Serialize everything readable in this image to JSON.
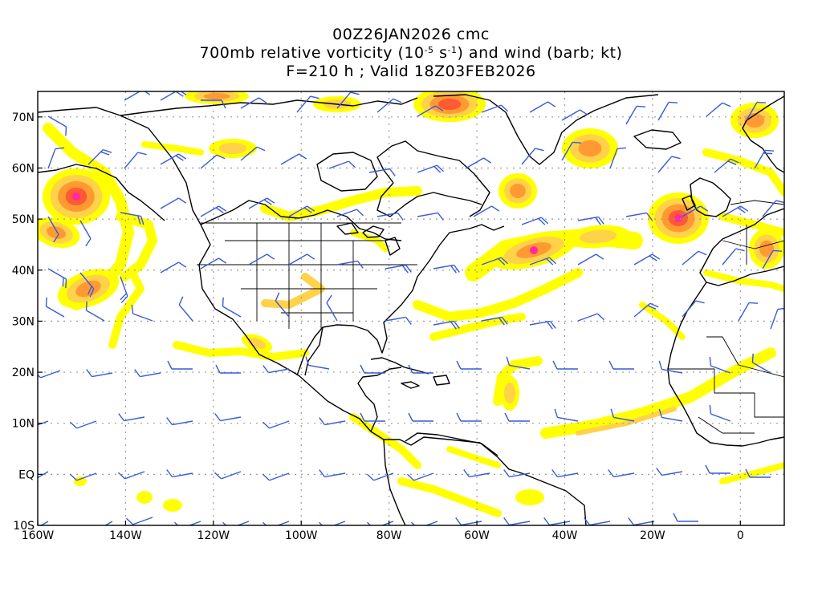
{
  "title": {
    "line1": "00Z26JAN2026 cmc",
    "line2_pre": "700mb relative vorticity (10",
    "line2_exp1": "-5",
    "line2_mid": " s",
    "line2_exp2": "-1",
    "line2_post": ") and wind (barb; kt)",
    "line3": "F=210 h ; Valid 18Z03FEB2026"
  },
  "map": {
    "lon_range": [
      -160,
      10
    ],
    "lat_range": [
      -10,
      75
    ],
    "lon_labels": [
      "160W",
      "140W",
      "120W",
      "100W",
      "80W",
      "60W",
      "40W",
      "20W",
      "0"
    ],
    "lat_labels": [
      "70N",
      "60N",
      "50N",
      "40N",
      "30N",
      "20N",
      "10N",
      "EQ",
      "10S"
    ],
    "colors": {
      "frame": "#000000",
      "coast": "#000000",
      "grid": "#9a9a9a",
      "barb": "#3a5ad8",
      "vort_low": "#ffff00",
      "vort_mid": "#ffd24a",
      "vort_high": "#ff9a33",
      "vort_vhigh": "#ff5a33",
      "vort_peak": "#ff2aa0"
    }
  }
}
